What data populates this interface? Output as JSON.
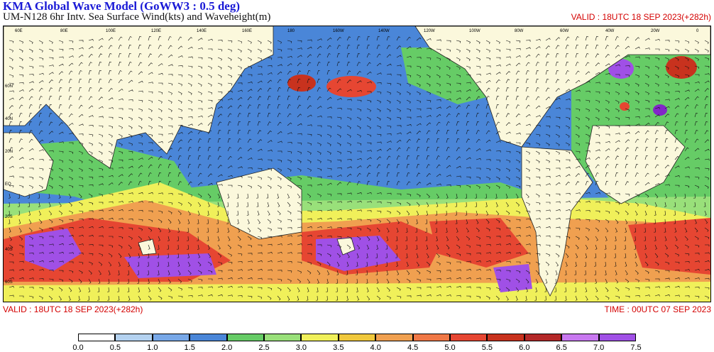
{
  "header": {
    "title": "KMA  Global Wave Model (GoWW3 : 0.5 deg)",
    "subtitle": "UM-N128  6hr Intv. Sea Surface Wind(kts) and Waveheight(m)",
    "valid_top_right": "VALID : 18UTC 18 SEP 2023(+282h)"
  },
  "footer": {
    "valid_left": "VALID : 18UTC 18 SEP 2023(+282h)",
    "time_right": "TIME : 00UTC 07 SEP 2023"
  },
  "colorbar": {
    "unit": "m",
    "levels": [
      "0.0",
      "0.5",
      "1.0",
      "1.5",
      "2.0",
      "2.5",
      "3.0",
      "3.5",
      "4.0",
      "4.5",
      "5.0",
      "5.5",
      "6.0",
      "6.5",
      "7.0",
      "7.5"
    ],
    "colors": [
      "#ffffff",
      "#b4d2f0",
      "#78a8e8",
      "#4a86d8",
      "#66cc66",
      "#99e07a",
      "#f0f05a",
      "#f0c83c",
      "#f0a050",
      "#f07846",
      "#e64632",
      "#c8321e",
      "#b42828",
      "#c878f0",
      "#a050e6",
      "#8228c8"
    ]
  },
  "map": {
    "projection": "lat-lon",
    "land_color": "#fbf8dc",
    "coast_color": "#222222",
    "ocean_base_color": "#4a86d8",
    "lon_labels": [
      "60E",
      "80E",
      "100E",
      "120E",
      "140E",
      "160E",
      "180",
      "160W",
      "140W",
      "120W",
      "100W",
      "80W",
      "60W",
      "40W",
      "20W",
      "0"
    ],
    "lat_labels": [
      "60N",
      "40N",
      "20N",
      "EQ",
      "20S",
      "40S",
      "60S"
    ]
  }
}
